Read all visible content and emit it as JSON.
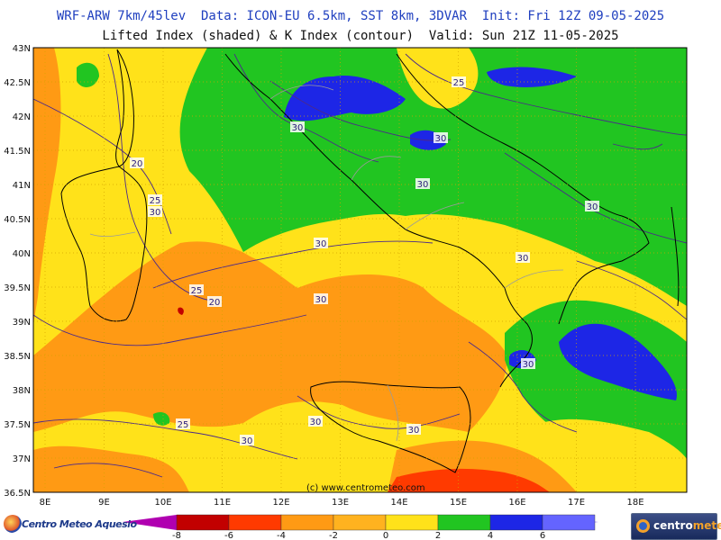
{
  "header": {
    "line1": "WRF-ARW 7km/45lev  Data: ICON-EU 6.5km, SST 8km, 3DVAR  Init: Fri 12Z 09-05-2025",
    "line2": "Lifted Index (shaded) & K Index (contour)  Valid: Sun 21Z 11-05-2025"
  },
  "map": {
    "lat_labels": [
      "43N",
      "42.5N",
      "42N",
      "41.5N",
      "41N",
      "40.5N",
      "40N",
      "39.5N",
      "39N",
      "38.5N",
      "38N",
      "37.5N",
      "37N",
      "36.5N"
    ],
    "lon_labels": [
      "8E",
      "9E",
      "10E",
      "11E",
      "12E",
      "13E",
      "14E",
      "15E",
      "16E",
      "17E",
      "18E"
    ],
    "contour_labels": [
      "25",
      "30",
      "30",
      "20",
      "25",
      "30",
      "30",
      "30",
      "30",
      "30",
      "25",
      "20",
      "30",
      "30",
      "25",
      "30",
      "30",
      "30"
    ],
    "watermark": "(c) www.centrometeo.com",
    "colors": {
      "li_6": "#a98bff",
      "li_4": "#6464ff",
      "li_2": "#1d26e6",
      "li_0": "#21c521",
      "li_m2": "#ffe21a",
      "li_m4": "#ff9a14",
      "li_m6": "#ff3a00",
      "li_m8": "#c20000",
      "li_below": "#b000b0",
      "contour": "#4b2a8a",
      "coast": "#000000",
      "border": "#9a9a9a"
    }
  },
  "colorbar": {
    "labels": [
      "-8",
      "-6",
      "-4",
      "-2",
      "0",
      "2",
      "4",
      "6"
    ],
    "colors": [
      "#c20000",
      "#ff3a00",
      "#ff9a14",
      "#ffb21f",
      "#ffe21a",
      "#21c521",
      "#1d26e6",
      "#6464ff"
    ]
  },
  "logos": {
    "left_text": "Centro Meteo Aquesio",
    "right_text_a": "centro",
    "right_text_b": "meteo"
  }
}
